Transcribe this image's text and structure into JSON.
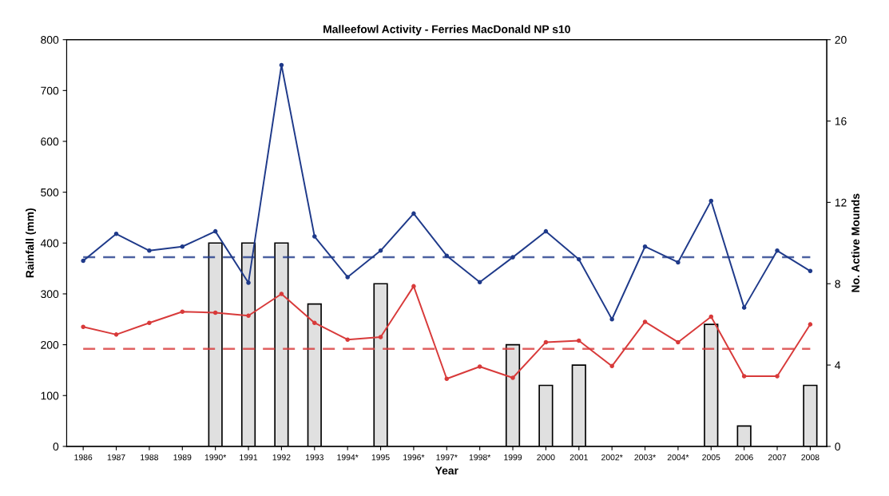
{
  "chart_data": {
    "type": "line",
    "title": "Malleefowl Activity - Ferries MacDonald NP s10",
    "xlabel": "Year",
    "ylabel": "Rainfall (mm)",
    "y2label": "No. Active Mounds",
    "categories": [
      "1986",
      "1987",
      "1988",
      "1989",
      "1990*",
      "1991",
      "1992",
      "1993",
      "1994*",
      "1995",
      "1996*",
      "1997*",
      "1998*",
      "1999",
      "2000",
      "2001",
      "2002*",
      "2003*",
      "2004*",
      "2005",
      "2006",
      "2007",
      "2008"
    ],
    "series": [
      {
        "type": "bar",
        "axis": "y2",
        "color": "#e0e0e0",
        "values": [
          null,
          null,
          null,
          null,
          10,
          10,
          10,
          7,
          null,
          8,
          null,
          null,
          null,
          5,
          3,
          4,
          null,
          null,
          null,
          6,
          1,
          null,
          3
        ]
      },
      {
        "color": "#1f3a8a",
        "values": [
          365,
          418,
          385,
          393,
          423,
          322,
          750,
          413,
          333,
          385,
          458,
          375,
          323,
          372,
          423,
          368,
          250,
          393,
          362,
          483,
          273,
          385,
          345
        ]
      },
      {
        "color": "#d83a3a",
        "values": [
          235,
          220,
          243,
          265,
          263,
          257,
          300,
          243,
          210,
          215,
          315,
          133,
          157,
          135,
          205,
          208,
          158,
          245,
          205,
          255,
          138,
          138,
          240
        ]
      }
    ],
    "ref_lines": [
      {
        "axis": "y",
        "value": 372,
        "color": "#1f3a8a",
        "line_style": "dashed"
      },
      {
        "axis": "y",
        "value": 192,
        "color": "#d83a3a",
        "line_style": "dashed"
      }
    ],
    "ylim": [
      0,
      800
    ],
    "yticks": [
      0,
      100,
      200,
      300,
      400,
      500,
      600,
      700,
      800
    ],
    "y2lim": [
      0,
      20
    ],
    "y2ticks": [
      0,
      4,
      8,
      12,
      16,
      20
    ],
    "marker": "circle",
    "grid": false
  }
}
